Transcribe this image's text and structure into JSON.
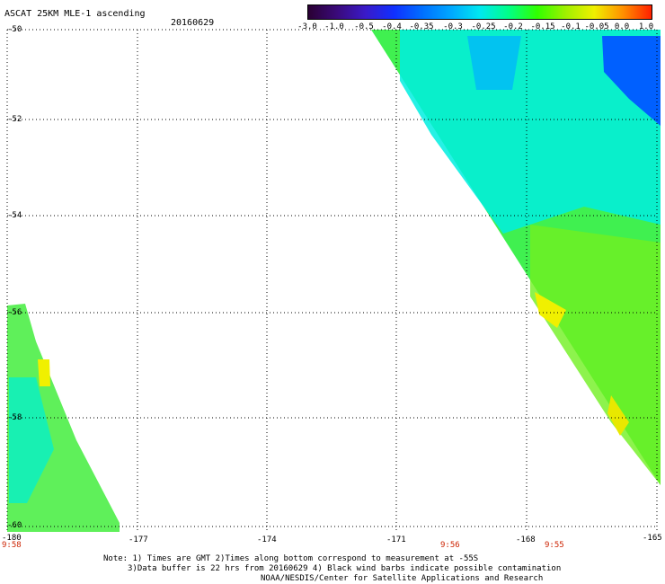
{
  "header": {
    "title": "ASCAT 25KM MLE-1 ascending",
    "date": "20160629"
  },
  "colorbar": {
    "labels": [
      "-3.0",
      "-1.0",
      "-0.5",
      "-0.4",
      "-0.35",
      "-0.3",
      "-0.25",
      "-0.2",
      "-0.15",
      "-0.1",
      "-0.05",
      "0.0",
      "1.0"
    ],
    "colors": [
      "#2a0033",
      "#3a0a7a",
      "#3a1ac8",
      "#1030ff",
      "#0070ff",
      "#00a8ff",
      "#00e8f0",
      "#00ff88",
      "#30ff00",
      "#a0f000",
      "#f0f000",
      "#ff9000",
      "#ff2000"
    ]
  },
  "map": {
    "lat_labels": [
      "-50",
      "-52",
      "-54",
      "-56",
      "-58",
      "-60"
    ],
    "lon_labels": [
      "-180",
      "-177",
      "-174",
      "-171",
      "-168",
      "-165"
    ],
    "time_labels": [
      "9:58",
      "9:56",
      "9:55"
    ],
    "layers": {
      "east_swath": "wind-field-swath-east",
      "west_swath": "wind-field-swath-west"
    }
  },
  "footer": {
    "line1": "Note: 1) Times are GMT 2)Times along bottom correspond to measurement at -55S",
    "line2": "3)Data buffer is 22 hrs from 20160629 4) Black wind barbs indicate possible contamination",
    "line3": "NOAA/NESDIS/Center for Satellite Applications and Research"
  }
}
